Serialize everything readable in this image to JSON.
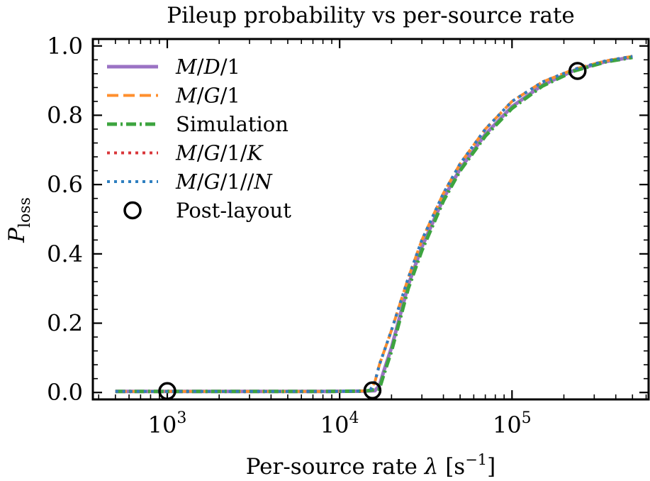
{
  "chart_data": {
    "type": "line",
    "title": "Pileup probability vs per-source rate",
    "xlabel": {
      "prefix": "Per-source rate ",
      "symbol": "λ",
      "unit_open": " [s",
      "unit_exp": "−1",
      "unit_close": "]"
    },
    "ylabel": {
      "main": "P",
      "sub": "loss"
    },
    "xscale": "log",
    "xlim": [
      370,
      620000
    ],
    "ylim": [
      -0.02,
      1.02
    ],
    "x_ticks": [
      {
        "value": 1000,
        "base": "10",
        "exp": "3"
      },
      {
        "value": 10000,
        "base": "10",
        "exp": "4"
      },
      {
        "value": 100000,
        "base": "10",
        "exp": "5"
      }
    ],
    "y_ticks": [
      {
        "value": 0.0,
        "label": "0.0"
      },
      {
        "value": 0.2,
        "label": "0.2"
      },
      {
        "value": 0.4,
        "label": "0.4"
      },
      {
        "value": 0.6,
        "label": "0.6"
      },
      {
        "value": 0.8,
        "label": "0.8"
      },
      {
        "value": 1.0,
        "label": "1.0"
      }
    ],
    "legend_position": "top-left",
    "series": [
      {
        "name": "M/D/1",
        "label_parts": [
          [
            "M",
            true
          ],
          [
            "/",
            false
          ],
          [
            "D",
            true
          ],
          [
            "/1",
            false
          ]
        ],
        "color": "#9b73c4",
        "style": "solid",
        "width": 5,
        "x": [
          500,
          2000,
          8000,
          14000,
          16000,
          17000,
          18000,
          20000,
          25000,
          30000,
          40000,
          50000,
          70000,
          100000,
          150000,
          230000,
          350000,
          500000
        ],
        "y": [
          0.003,
          0.003,
          0.003,
          0.004,
          0.005,
          0.02,
          0.06,
          0.13,
          0.31,
          0.42,
          0.56,
          0.645,
          0.745,
          0.825,
          0.887,
          0.93,
          0.955,
          0.968
        ]
      },
      {
        "name": "M/G/1",
        "label_parts": [
          [
            "M",
            true
          ],
          [
            "/",
            false
          ],
          [
            "G",
            true
          ],
          [
            "/1",
            false
          ]
        ],
        "color": "#ff8f2e",
        "style": "dashed",
        "width": 4,
        "x": [
          500,
          2000,
          8000,
          13000,
          15000,
          16000,
          17000,
          20000,
          25000,
          30000,
          40000,
          50000,
          70000,
          100000,
          150000,
          230000,
          350000,
          500000
        ],
        "y": [
          0.003,
          0.003,
          0.003,
          0.004,
          0.006,
          0.03,
          0.08,
          0.18,
          0.33,
          0.44,
          0.575,
          0.66,
          0.76,
          0.84,
          0.896,
          0.933,
          0.957,
          0.97
        ]
      },
      {
        "name": "Simulation",
        "label_parts": [
          [
            "Simulation",
            false
          ]
        ],
        "color": "#3da43f",
        "style": "dashdot",
        "width": 5,
        "x": [
          500,
          2000,
          8000,
          14000,
          17000,
          18000,
          20000,
          25000,
          30000,
          40000,
          50000,
          70000,
          100000,
          150000,
          230000,
          350000,
          500000
        ],
        "y": [
          0.003,
          0.003,
          0.003,
          0.004,
          0.01,
          0.05,
          0.12,
          0.3,
          0.41,
          0.553,
          0.64,
          0.74,
          0.82,
          0.884,
          0.928,
          0.954,
          0.967
        ]
      },
      {
        "name": "M/G/1/K",
        "label_parts": [
          [
            "M",
            true
          ],
          [
            "/",
            false
          ],
          [
            "G",
            true
          ],
          [
            "/1/",
            false
          ],
          [
            "K",
            true
          ]
        ],
        "color": "#d9363a",
        "style": "dotted",
        "width": 4,
        "x": [
          500,
          2000,
          8000,
          13000,
          15000,
          16000,
          17000,
          20000,
          25000,
          30000,
          40000,
          50000,
          70000,
          100000,
          150000,
          230000,
          350000,
          500000
        ],
        "y": [
          0.003,
          0.003,
          0.003,
          0.004,
          0.006,
          0.03,
          0.08,
          0.18,
          0.33,
          0.44,
          0.575,
          0.66,
          0.76,
          0.84,
          0.896,
          0.933,
          0.957,
          0.97
        ]
      },
      {
        "name": "M/G/1//N",
        "label_parts": [
          [
            "M",
            true
          ],
          [
            "/",
            false
          ],
          [
            "G",
            true
          ],
          [
            "/1//",
            false
          ],
          [
            "N",
            true
          ]
        ],
        "color": "#2f7fc0",
        "style": "dotted",
        "width": 4,
        "x": [
          500,
          2000,
          8000,
          13000,
          15000,
          16000,
          17000,
          20000,
          25000,
          30000,
          40000,
          50000,
          70000,
          100000,
          150000,
          230000,
          350000,
          500000
        ],
        "y": [
          0.003,
          0.003,
          0.003,
          0.004,
          0.006,
          0.03,
          0.08,
          0.18,
          0.33,
          0.44,
          0.575,
          0.66,
          0.76,
          0.84,
          0.896,
          0.933,
          0.957,
          0.97
        ]
      }
    ],
    "markers": {
      "name": "Post-layout",
      "label_parts": [
        [
          "Post-layout",
          false
        ]
      ],
      "style": "open-circle",
      "color": "#000000",
      "points": [
        {
          "x": 1000,
          "y": 0.004
        },
        {
          "x": 15500,
          "y": 0.006
        },
        {
          "x": 240000,
          "y": 0.928
        }
      ]
    }
  }
}
